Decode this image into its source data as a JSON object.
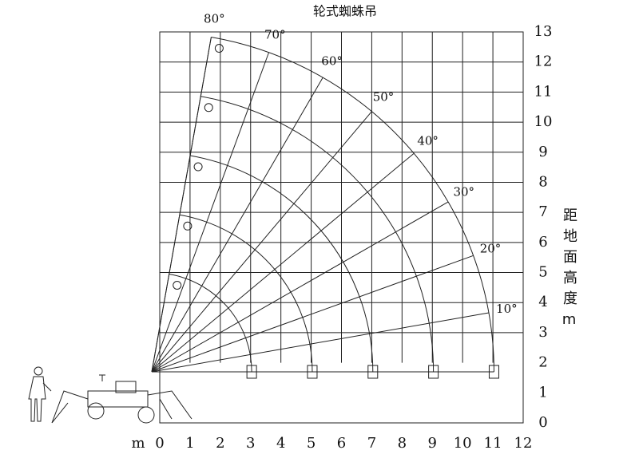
{
  "title": "轮式蜘蛛吊",
  "x_axis": {
    "unit": "m",
    "ticks": [
      0,
      1,
      2,
      3,
      4,
      5,
      6,
      7,
      8,
      9,
      10,
      11,
      12
    ]
  },
  "y_axis": {
    "title": "距地面高度m",
    "ticks": [
      0,
      1,
      2,
      3,
      4,
      5,
      6,
      7,
      8,
      9,
      10,
      11,
      12,
      13
    ]
  },
  "angles": [
    {
      "value": 80,
      "label": "80°"
    },
    {
      "value": 70,
      "label": "70°"
    },
    {
      "value": 60,
      "label": "60°"
    },
    {
      "value": 50,
      "label": "50°"
    },
    {
      "value": 40,
      "label": "40°"
    },
    {
      "value": 30,
      "label": "30°"
    },
    {
      "value": 20,
      "label": "20°"
    },
    {
      "value": 10,
      "label": "10°"
    }
  ]
}
